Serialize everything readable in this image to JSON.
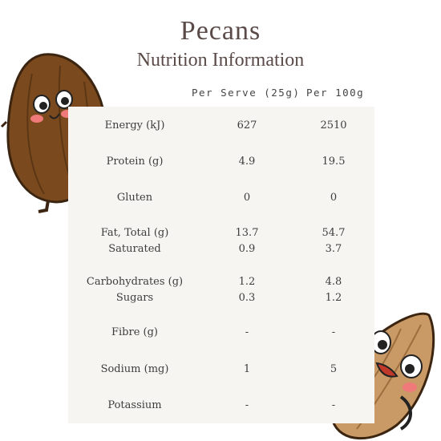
{
  "title": "Pecans",
  "subtitle": "Nutrition Information",
  "headers": {
    "per_serve": "Per Serve (25g)",
    "per_100g": "Per 100g"
  },
  "rows": [
    {
      "label": "Energy (kJ)",
      "serve": "627",
      "per100": "2510"
    },
    {
      "label": "Protein (g)",
      "serve": "4.9",
      "per100": "19.5"
    },
    {
      "label": "Gluten",
      "serve": "0",
      "per100": "0"
    },
    {
      "label": "Fat, Total (g)",
      "serve": "13.7",
      "per100": "54.7"
    },
    {
      "label": "Saturated",
      "serve": "0.9",
      "per100": "3.7"
    },
    {
      "label": "Carbohydrates (g)",
      "serve": "1.2",
      "per100": "4.8"
    },
    {
      "label": "Sugars",
      "serve": "0.3",
      "per100": "1.2"
    },
    {
      "label": "Fibre (g)",
      "serve": "-",
      "per100": "-"
    },
    {
      "label": "Sodium (mg)",
      "serve": "1",
      "per100": "5"
    },
    {
      "label": "Potassium",
      "serve": "-",
      "per100": "-"
    }
  ],
  "colors": {
    "nut_brown": "#7a4a1e",
    "almond": "#c99a66",
    "panel": "#f7f5f1",
    "title": "#5a4a48"
  }
}
